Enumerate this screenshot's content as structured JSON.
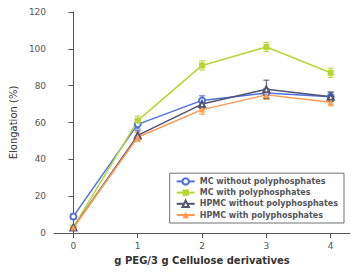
{
  "chart_data": {
    "type": "line",
    "xlabel": "g PEG/3 g Cellulose derivatives",
    "ylabel": "Elongation (%)",
    "x": [
      0,
      1,
      2,
      3,
      4
    ],
    "series": [
      {
        "name": "MC without polyphosphates",
        "marker": "circle-open",
        "values": [
          9,
          59,
          72,
          76,
          74
        ],
        "errors": [
          1.5,
          2.5,
          2.5,
          2.5,
          2.5
        ]
      },
      {
        "name": "MC with polyphosphates",
        "marker": "square",
        "values": [
          3,
          61,
          91,
          101,
          87
        ],
        "errors": [
          0.5,
          2.5,
          2.5,
          2.5,
          2.5
        ]
      },
      {
        "name": "HPMC without polyphosphates",
        "marker": "triangle-open",
        "values": [
          3,
          53,
          70,
          78,
          74
        ],
        "errors": [
          0.5,
          2.5,
          2.5,
          5,
          2.5
        ]
      },
      {
        "name": "HPMC with polyphosphates",
        "marker": "triangle",
        "values": [
          3,
          52,
          67,
          75,
          71
        ],
        "errors": [
          0.5,
          2.5,
          2.5,
          2.5,
          2.0
        ]
      }
    ],
    "xlim": [
      -0.3,
      4.3
    ],
    "xticks": [
      0,
      1,
      2,
      3,
      4
    ],
    "ylim": [
      0,
      120
    ],
    "yticks": [
      0,
      20,
      40,
      60,
      80,
      100,
      120
    ],
    "grid": false,
    "legend": "lower right"
  }
}
